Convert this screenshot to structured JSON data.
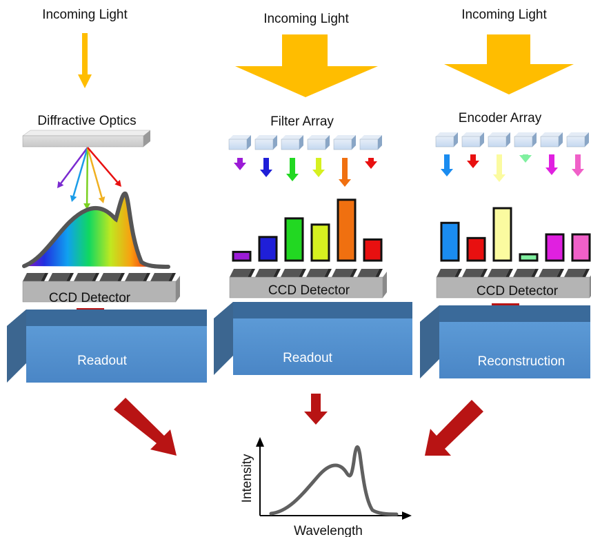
{
  "columns": [
    {
      "incoming_label": "Incoming Light",
      "element_label": "Diffractive Optics",
      "detector_label": "CCD Detector",
      "processing_label": "Readout"
    },
    {
      "incoming_label": "Incoming Light",
      "element_label": "Filter Array",
      "detector_label": "CCD Detector",
      "processing_label": "Readout",
      "bar_colors": [
        "#9b1bd6",
        "#1f1fd8",
        "#22d822",
        "#d6f020",
        "#f07010",
        "#e81010"
      ],
      "bar_levels": [
        0.14,
        0.38,
        0.68,
        0.58,
        0.98,
        0.34
      ],
      "arrow_colors": [
        "#9b1bd6",
        "#1f1fd8",
        "#22d822",
        "#d6f020",
        "#f07010",
        "#e81010"
      ]
    },
    {
      "incoming_label": "Incoming Light",
      "element_label": "Encoder Array",
      "detector_label": "CCD Detector",
      "processing_label": "Reconstruction",
      "bar_colors": [
        "#1a8cf0",
        "#e81010",
        "#fbfba0",
        "#80f0a0",
        "#e020e0",
        "#f060c8"
      ],
      "bar_levels": [
        0.72,
        0.43,
        1.0,
        0.12,
        0.5,
        0.5
      ],
      "arrow_colors": [
        "#1a8cf0",
        "#e81010",
        "#fbfba0",
        "#80f0a0",
        "#e020e0",
        "#f060c8"
      ]
    }
  ],
  "ray_colors": [
    "#7a2ad0",
    "#1a9ce8",
    "#7ad020",
    "#f0b020",
    "#e81010"
  ],
  "output": {
    "ylabel": "Intensity",
    "xlabel": "Wavelength"
  },
  "colors": {
    "light_arrow": "#ffbd00",
    "flow_arrow": "#b81414",
    "block_front": "#5a9ad8",
    "block_top": "#3a6a9a",
    "filter_cell": "#cfe0f4",
    "detector_body": "#b4b4b4",
    "curve": "#606060"
  }
}
